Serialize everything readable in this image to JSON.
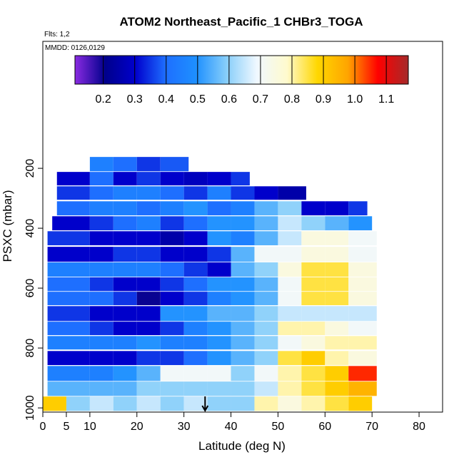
{
  "chart_data": {
    "type": "curtain",
    "title": "ATOM2 Northeast_Pacific_1 CHBr3_TOGA",
    "annotations": [
      "Flts: 1,2",
      "MMDD: 0126,0129"
    ],
    "x_label": "Latitude (deg N)",
    "y_label": "PSXC (mbar)",
    "xlim": [
      0,
      85
    ],
    "xticks": [
      0,
      5,
      10,
      20,
      30,
      40,
      50,
      60,
      70,
      80
    ],
    "ylim": [
      1014,
      -224
    ],
    "yticks": [
      200,
      400,
      600,
      800,
      1000
    ],
    "colorbar": {
      "lim": [
        0.11,
        1.17
      ],
      "ticks": [
        {
          "value": 0.2,
          "label": "0.2"
        },
        {
          "value": 0.3,
          "label": "0.3"
        },
        {
          "value": 0.4,
          "label": "0.4"
        },
        {
          "value": 0.5,
          "label": "0.5"
        },
        {
          "value": 0.6,
          "label": "0.6"
        },
        {
          "value": 0.7,
          "label": "0.7"
        },
        {
          "value": 0.8,
          "label": "0.8"
        },
        {
          "value": 0.9,
          "label": "0.9"
        },
        {
          "value": 1.0,
          "label": "1.0"
        },
        {
          "value": 1.1,
          "label": "1.1"
        }
      ],
      "colors": [
        "#8a2be2",
        "#00008b",
        "#0000cd",
        "#1e6fff",
        "#1e90ff",
        "#87cefa",
        "#f0f8ff",
        "#fffacd",
        "#ffd700",
        "#ffa500",
        "#ff0000",
        "#a52a2a"
      ]
    },
    "arrow_lat": 34.5,
    "rows": [
      {
        "pressure": [
          162,
          210
        ],
        "edges": [
          10,
          15,
          20,
          25,
          31
        ],
        "values": [
          0.45,
          0.4,
          0.35,
          0.38
        ]
      },
      {
        "pressure": [
          212,
          257
        ],
        "edges": [
          3,
          10,
          15,
          20,
          25,
          30,
          35,
          40,
          44
        ],
        "values": [
          0.3,
          0.4,
          0.3,
          0.35,
          0.3,
          0.28,
          0.3,
          0.35
        ]
      },
      {
        "pressure": [
          260,
          305
        ],
        "edges": [
          3,
          10,
          15,
          20,
          25,
          30,
          35,
          40,
          45,
          50,
          56
        ],
        "values": [
          0.35,
          0.4,
          0.45,
          0.45,
          0.4,
          0.35,
          0.45,
          0.35,
          0.3,
          0.25
        ]
      },
      {
        "pressure": [
          310,
          357
        ],
        "edges": [
          3,
          10,
          15,
          20,
          25,
          30,
          35,
          40,
          45,
          50,
          55,
          60,
          65,
          69
        ],
        "values": [
          0.4,
          0.45,
          0.45,
          0.4,
          0.45,
          0.5,
          0.4,
          0.45,
          0.55,
          0.6,
          0.3,
          0.3,
          0.35
        ]
      },
      {
        "pressure": [
          360,
          407
        ],
        "edges": [
          2,
          10,
          15,
          20,
          25,
          30,
          35,
          40,
          45,
          50,
          55,
          60,
          65,
          70
        ],
        "values": [
          0.3,
          0.35,
          0.4,
          0.45,
          0.35,
          0.4,
          0.5,
          0.5,
          0.55,
          0.65,
          0.6,
          0.55,
          0.5
        ]
      },
      {
        "pressure": [
          410,
          457
        ],
        "edges": [
          1,
          10,
          15,
          20,
          25,
          30,
          35,
          40,
          45,
          50,
          55,
          60,
          65,
          71
        ],
        "values": [
          0.35,
          0.3,
          0.3,
          0.3,
          0.25,
          0.3,
          0.5,
          0.45,
          0.55,
          0.65,
          0.75,
          0.75,
          0.7
        ]
      },
      {
        "pressure": [
          462,
          512
        ],
        "edges": [
          1,
          10,
          15,
          20,
          25,
          30,
          35,
          40,
          45,
          50,
          55,
          60,
          65,
          71
        ],
        "values": [
          0.3,
          0.3,
          0.35,
          0.35,
          0.3,
          0.3,
          0.35,
          0.55,
          0.7,
          0.7,
          0.75,
          0.75,
          0.7
        ]
      },
      {
        "pressure": [
          514,
          562
        ],
        "edges": [
          1,
          10,
          15,
          20,
          25,
          30,
          35,
          40,
          45,
          50,
          55,
          60,
          65,
          71
        ],
        "values": [
          0.45,
          0.45,
          0.45,
          0.45,
          0.4,
          0.35,
          0.3,
          0.55,
          0.6,
          0.75,
          0.85,
          0.85,
          0.75
        ]
      },
      {
        "pressure": [
          564,
          610
        ],
        "edges": [
          1,
          10,
          15,
          20,
          25,
          30,
          35,
          40,
          45,
          50,
          55,
          60,
          65,
          71
        ],
        "values": [
          0.4,
          0.35,
          0.3,
          0.3,
          0.35,
          0.4,
          0.5,
          0.5,
          0.55,
          0.7,
          0.85,
          0.85,
          0.75
        ]
      },
      {
        "pressure": [
          612,
          657
        ],
        "edges": [
          1,
          10,
          15,
          20,
          25,
          30,
          35,
          40,
          45,
          50,
          55,
          60,
          65,
          71
        ],
        "values": [
          0.4,
          0.4,
          0.35,
          0.2,
          0.3,
          0.35,
          0.45,
          0.5,
          0.55,
          0.7,
          0.85,
          0.85,
          0.75
        ]
      },
      {
        "pressure": [
          660,
          710
        ],
        "edges": [
          1,
          10,
          15,
          20,
          25,
          30,
          35,
          40,
          45,
          50,
          55,
          60,
          65,
          71
        ],
        "values": [
          0.35,
          0.3,
          0.3,
          0.3,
          0.5,
          0.5,
          0.55,
          0.55,
          0.6,
          0.65,
          0.65,
          0.65,
          0.65
        ]
      },
      {
        "pressure": [
          712,
          757
        ],
        "edges": [
          1,
          10,
          15,
          20,
          25,
          30,
          35,
          40,
          45,
          50,
          55,
          60,
          65,
          71
        ],
        "values": [
          0.4,
          0.35,
          0.3,
          0.3,
          0.35,
          0.45,
          0.5,
          0.55,
          0.6,
          0.8,
          0.8,
          0.75,
          0.7
        ]
      },
      {
        "pressure": [
          760,
          805
        ],
        "edges": [
          1,
          10,
          15,
          20,
          25,
          30,
          35,
          40,
          45,
          50,
          55,
          60,
          65,
          71
        ],
        "values": [
          0.45,
          0.45,
          0.45,
          0.5,
          0.45,
          0.45,
          0.5,
          0.55,
          0.6,
          0.7,
          0.75,
          0.8,
          0.8
        ]
      },
      {
        "pressure": [
          810,
          857
        ],
        "edges": [
          1,
          10,
          15,
          20,
          25,
          30,
          35,
          40,
          45,
          50,
          55,
          60,
          65,
          71
        ],
        "values": [
          0.3,
          0.3,
          0.3,
          0.35,
          0.35,
          0.4,
          0.5,
          0.55,
          0.6,
          0.85,
          0.9,
          0.8,
          0.75
        ]
      },
      {
        "pressure": [
          860,
          910
        ],
        "edges": [
          1,
          10,
          15,
          20,
          25,
          30,
          35,
          40,
          45,
          50,
          55,
          60,
          65,
          71
        ],
        "values": [
          0.45,
          0.45,
          0.5,
          0.55,
          0.7,
          0.7,
          0.7,
          0.6,
          0.7,
          0.8,
          0.85,
          0.9,
          1.05
        ]
      },
      {
        "pressure": [
          912,
          960
        ],
        "edges": [
          1,
          10,
          15,
          20,
          25,
          30,
          35,
          40,
          45,
          50,
          55,
          60,
          65,
          71
        ],
        "values": [
          0.55,
          0.55,
          0.55,
          0.6,
          0.6,
          0.6,
          0.6,
          0.6,
          0.65,
          0.8,
          0.85,
          0.9,
          0.95
        ]
      },
      {
        "pressure": [
          962,
          1010
        ],
        "edges": [
          0,
          5,
          10,
          15,
          20,
          25,
          30,
          35,
          40,
          45,
          50,
          55,
          60,
          65,
          70
        ],
        "values": [
          0.9,
          0.6,
          0.65,
          0.6,
          0.65,
          0.6,
          0.65,
          0.6,
          0.6,
          0.8,
          0.75,
          0.8,
          0.85,
          0.9
        ]
      }
    ]
  }
}
